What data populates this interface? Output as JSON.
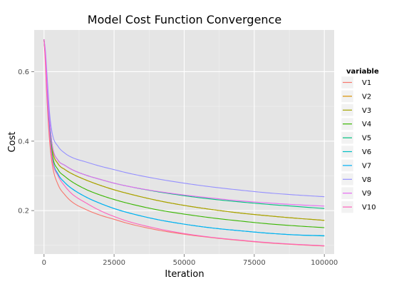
{
  "chart_data": {
    "type": "line",
    "title": "Model Cost Function Convergence",
    "xlabel": "Iteration",
    "ylabel": "Cost",
    "xlim": [
      -3500,
      103500
    ],
    "ylim": [
      0.075,
      0.72
    ],
    "x_ticks": [
      0,
      25000,
      50000,
      75000,
      100000
    ],
    "x_tick_labels": [
      "0",
      "25000",
      "50000",
      "75000",
      "100000"
    ],
    "y_ticks": [
      0.2,
      0.4,
      0.6
    ],
    "y_tick_labels": [
      "0.2",
      "0.4",
      "0.6"
    ],
    "grid": true,
    "legend_title": "variable",
    "legend_position": "right",
    "x": [
      0,
      500,
      1000,
      2000,
      3000,
      5000,
      7500,
      10000,
      15000,
      20000,
      25000,
      30000,
      40000,
      50000,
      60000,
      70000,
      80000,
      90000,
      100000
    ],
    "series": [
      {
        "name": "V1",
        "color": "#F8766D",
        "values": [
          0.693,
          0.62,
          0.53,
          0.4,
          0.33,
          0.275,
          0.245,
          0.225,
          0.203,
          0.187,
          0.175,
          0.163,
          0.145,
          0.132,
          0.122,
          0.114,
          0.107,
          0.102,
          0.098
        ]
      },
      {
        "name": "V2",
        "color": "#D89000",
        "values": [
          0.693,
          0.64,
          0.57,
          0.45,
          0.375,
          0.335,
          0.318,
          0.306,
          0.288,
          0.273,
          0.26,
          0.249,
          0.23,
          0.215,
          0.203,
          0.193,
          0.185,
          0.178,
          0.172
        ]
      },
      {
        "name": "V3",
        "color": "#A3A500",
        "values": [
          0.693,
          0.64,
          0.57,
          0.45,
          0.375,
          0.335,
          0.318,
          0.306,
          0.288,
          0.273,
          0.26,
          0.249,
          0.23,
          0.215,
          0.203,
          0.193,
          0.185,
          0.178,
          0.172
        ]
      },
      {
        "name": "V4",
        "color": "#39B600",
        "values": [
          0.693,
          0.64,
          0.57,
          0.44,
          0.36,
          0.318,
          0.298,
          0.283,
          0.261,
          0.245,
          0.232,
          0.221,
          0.203,
          0.19,
          0.179,
          0.17,
          0.162,
          0.156,
          0.151
        ]
      },
      {
        "name": "V5",
        "color": "#00BF7D",
        "values": [
          0.693,
          0.65,
          0.58,
          0.46,
          0.385,
          0.345,
          0.33,
          0.318,
          0.302,
          0.29,
          0.279,
          0.27,
          0.255,
          0.243,
          0.233,
          0.225,
          0.218,
          0.212,
          0.206
        ]
      },
      {
        "name": "V6",
        "color": "#00BFC4",
        "values": [
          0.693,
          0.64,
          0.56,
          0.43,
          0.35,
          0.305,
          0.28,
          0.263,
          0.239,
          0.221,
          0.206,
          0.194,
          0.175,
          0.161,
          0.15,
          0.142,
          0.135,
          0.13,
          0.127
        ]
      },
      {
        "name": "V7",
        "color": "#00B0F6",
        "values": [
          0.693,
          0.64,
          0.56,
          0.43,
          0.35,
          0.305,
          0.28,
          0.263,
          0.239,
          0.221,
          0.206,
          0.194,
          0.175,
          0.161,
          0.15,
          0.142,
          0.135,
          0.13,
          0.128
        ]
      },
      {
        "name": "V8",
        "color": "#9590FF",
        "values": [
          0.693,
          0.66,
          0.6,
          0.48,
          0.42,
          0.385,
          0.365,
          0.353,
          0.34,
          0.328,
          0.318,
          0.308,
          0.292,
          0.279,
          0.268,
          0.259,
          0.251,
          0.245,
          0.24
        ]
      },
      {
        "name": "V9",
        "color": "#E76BF3",
        "values": [
          0.693,
          0.65,
          0.58,
          0.46,
          0.385,
          0.345,
          0.33,
          0.318,
          0.302,
          0.29,
          0.279,
          0.27,
          0.256,
          0.245,
          0.236,
          0.228,
          0.222,
          0.217,
          0.213
        ]
      },
      {
        "name": "V10",
        "color": "#FF62BC",
        "values": [
          0.693,
          0.63,
          0.54,
          0.42,
          0.345,
          0.3,
          0.27,
          0.248,
          0.222,
          0.2,
          0.183,
          0.169,
          0.149,
          0.134,
          0.123,
          0.115,
          0.108,
          0.103,
          0.099
        ]
      }
    ]
  }
}
